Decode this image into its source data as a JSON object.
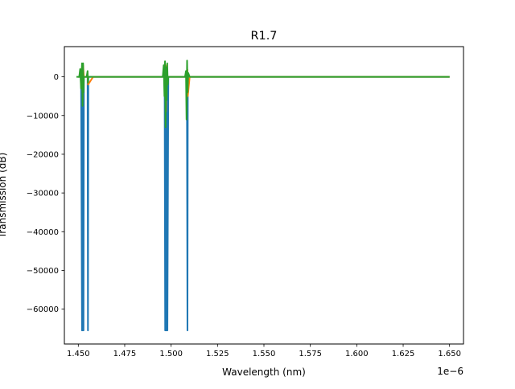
{
  "chart_data": {
    "type": "line",
    "title": "R1.7",
    "xlabel": "Wavelength (nm)",
    "ylabel": "Transmission (dB)",
    "x_offset_label": "1e−6",
    "xlim": [
      1.4425,
      1.6575
    ],
    "ylim": [
      -69000,
      7800
    ],
    "x_ticks": [
      1.45,
      1.475,
      1.5,
      1.525,
      1.55,
      1.575,
      1.6,
      1.625,
      1.65
    ],
    "x_tick_labels": [
      "1.450",
      "1.475",
      "1.500",
      "1.525",
      "1.550",
      "1.575",
      "1.600",
      "1.625",
      "1.650"
    ],
    "y_ticks": [
      0,
      -10000,
      -20000,
      -30000,
      -40000,
      -50000,
      -60000
    ],
    "y_tick_labels": [
      "0",
      "−10000",
      "−20000",
      "−30000",
      "−40000",
      "−50000",
      "−60000"
    ],
    "grid": false,
    "legend": "none",
    "series": [
      {
        "color": "#1f77b4",
        "x": [
          1.45,
          1.4515,
          1.452,
          1.4522,
          1.4524,
          1.4526,
          1.4528,
          1.453,
          1.4535,
          1.455,
          1.4552,
          1.4554,
          1.458,
          1.49,
          1.4965,
          1.4968,
          1.497,
          1.4972,
          1.4974,
          1.4976,
          1.4978,
          1.498,
          1.4985,
          1.505,
          1.5085,
          1.5088,
          1.509,
          1.51,
          1.55,
          1.6,
          1.65
        ],
        "y": [
          0,
          0,
          -65500,
          0,
          -65500,
          0,
          -65500,
          0,
          0,
          0,
          -65500,
          0,
          0,
          0,
          0,
          -65500,
          0,
          -65500,
          0,
          -65500,
          0,
          -65500,
          0,
          0,
          0,
          -65500,
          0,
          0,
          0,
          0,
          0
        ]
      },
      {
        "color": "#ff7f0e",
        "x": [
          1.45,
          1.4515,
          1.452,
          1.4523,
          1.4526,
          1.453,
          1.455,
          1.4553,
          1.458,
          1.4965,
          1.4968,
          1.4972,
          1.4976,
          1.498,
          1.5085,
          1.5088,
          1.509,
          1.51,
          1.6,
          1.65
        ],
        "y": [
          0,
          0,
          2500,
          -6000,
          3000,
          0,
          0,
          -2000,
          0,
          0,
          2500,
          -9000,
          3000,
          0,
          0,
          1800,
          -5000,
          0,
          0,
          0
        ]
      },
      {
        "color": "#2ca02c",
        "x": [
          1.449,
          1.4505,
          1.451,
          1.4515,
          1.452,
          1.4523,
          1.4526,
          1.4528,
          1.453,
          1.4545,
          1.455,
          1.4552,
          1.4554,
          1.458,
          1.4955,
          1.496,
          1.4964,
          1.4967,
          1.497,
          1.4973,
          1.4976,
          1.4979,
          1.4982,
          1.4985,
          1.5075,
          1.508,
          1.5083,
          1.5086,
          1.5089,
          1.5092,
          1.51,
          1.55,
          1.6,
          1.65
        ],
        "y": [
          0,
          0,
          2000,
          -3000,
          3500,
          -7500,
          3500,
          -4000,
          0,
          0,
          1500,
          -1500,
          0,
          0,
          0,
          3000,
          -5000,
          4000,
          -13000,
          2500,
          -6000,
          3500,
          -2000,
          0,
          0,
          1500,
          -11000,
          4200,
          -4000,
          1000,
          0,
          0,
          0,
          0
        ]
      }
    ]
  }
}
